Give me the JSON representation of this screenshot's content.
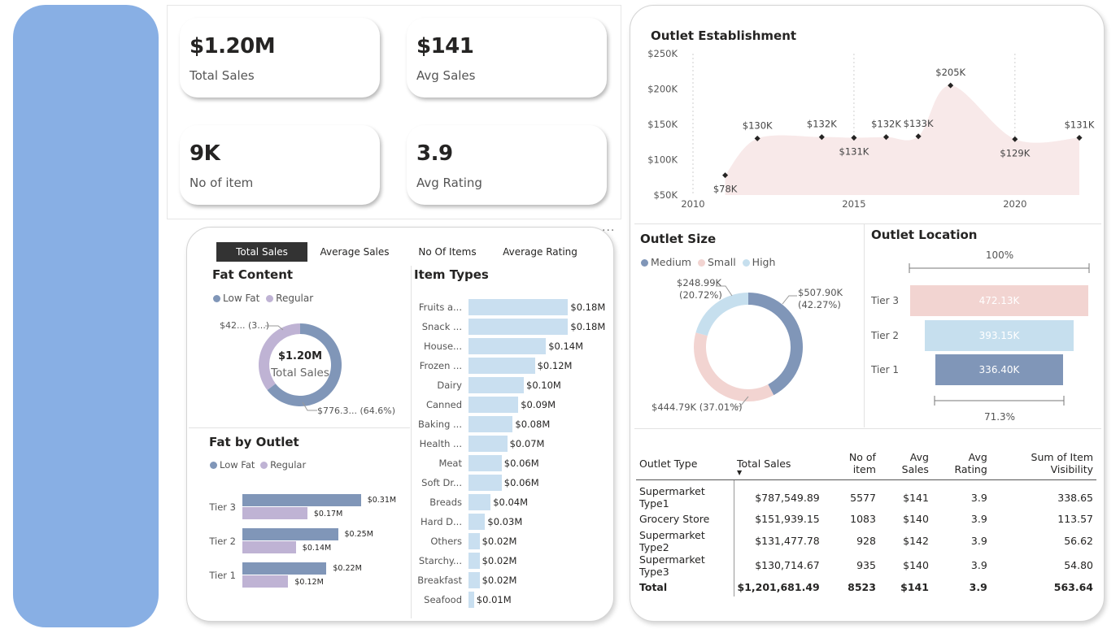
{
  "kpis": {
    "total_sales": {
      "value": "$1.20M",
      "label": "Total Sales"
    },
    "avg_sales": {
      "value": "$141",
      "label": "Avg Sales"
    },
    "no_of_item": {
      "value": "9K",
      "label": "No of item"
    },
    "avg_rating": {
      "value": "3.9",
      "label": "Avg Rating"
    }
  },
  "tabs": [
    {
      "label": "Total Sales",
      "active": true
    },
    {
      "label": "Average Sales",
      "active": false
    },
    {
      "label": "No Of Items",
      "active": false
    },
    {
      "label": "Average Rating",
      "active": false
    }
  ],
  "more_icon": "ellipsis-icon",
  "fat_content": {
    "title": "Fat Content",
    "legend": [
      "Low Fat",
      "Regular"
    ],
    "center_value": "$1.20M",
    "center_label": "Total Sales",
    "label_regular": "$42... (3...)",
    "label_lowfat": "$776.3... (64.6%)"
  },
  "fat_by_outlet": {
    "title": "Fat by Outlet",
    "legend": [
      "Low Fat",
      "Regular"
    ]
  },
  "item_types_title": "Item Types",
  "outlet_establishment_title": "Outlet Establishment",
  "outlet_size": {
    "title": "Outlet Size",
    "legend": [
      "Medium",
      "Small",
      "High"
    ],
    "label_high": "$248.99K",
    "label_high_pct": "(20.72%)",
    "label_medium": "$507.90K",
    "label_medium_pct": "(42.27%)",
    "label_small": "$444.79K (37.01%)"
  },
  "outlet_location": {
    "title": "Outlet Location",
    "top_pct": "100%",
    "bottom_pct": "71.3%"
  },
  "outlet_table": {
    "headers": [
      "Outlet Type",
      "Total Sales",
      "No of item",
      "Avg Sales",
      "Avg Rating",
      "Sum of Item Visibility"
    ],
    "rows": [
      [
        "Supermarket Type1",
        "$787,549.89",
        "5577",
        "$141",
        "3.9",
        "338.65"
      ],
      [
        "Grocery Store",
        "$151,939.15",
        "1083",
        "$140",
        "3.9",
        "113.57"
      ],
      [
        "Supermarket Type2",
        "$131,477.78",
        "928",
        "$142",
        "3.9",
        "56.62"
      ],
      [
        "Supermarket Type3",
        "$130,714.67",
        "935",
        "$140",
        "3.9",
        "54.80"
      ]
    ],
    "total": [
      "Total",
      "$1,201,681.49",
      "8523",
      "$141",
      "3.9",
      "563.64"
    ],
    "sort_icon": "sort-down-icon"
  },
  "colors": {
    "sidebar": "#88afe4",
    "low_fat": "#8096b8",
    "regular": "#bfb3d4",
    "medium": "#8096b8",
    "small": "#f2d4d1",
    "high": "#c6dfee",
    "item_bar": "#c9dff0",
    "area_fill": "#f8e9e9",
    "tier3": "#f2d4d1",
    "tier2": "#c6dfee",
    "tier1": "#8096b8"
  },
  "chart_data": [
    {
      "type": "pie",
      "title": "Fat Content",
      "categories": [
        "Low Fat",
        "Regular"
      ],
      "values": [
        776.32,
        425.36
      ],
      "percent": [
        64.6,
        35.4
      ]
    },
    {
      "type": "bar",
      "title": "Fat by Outlet",
      "categories": [
        "Tier 3",
        "Tier 2",
        "Tier 1"
      ],
      "series": [
        {
          "name": "Low Fat",
          "values": [
            0.31,
            0.25,
            0.22
          ],
          "labels": [
            "$0.31M",
            "$0.25M",
            "$0.22M"
          ]
        },
        {
          "name": "Regular",
          "values": [
            0.17,
            0.14,
            0.12
          ],
          "labels": [
            "$0.17M",
            "$0.14M",
            "$0.12M"
          ]
        }
      ]
    },
    {
      "type": "bar",
      "title": "Item Types",
      "categories": [
        "Fruits a...",
        "Snack ...",
        "House...",
        "Frozen ...",
        "Dairy",
        "Canned",
        "Baking ...",
        "Health ...",
        "Meat",
        "Soft Dr...",
        "Breads",
        "Hard D...",
        "Others",
        "Starchy...",
        "Breakfast",
        "Seafood"
      ],
      "values": [
        0.18,
        0.18,
        0.14,
        0.12,
        0.1,
        0.09,
        0.08,
        0.07,
        0.06,
        0.06,
        0.04,
        0.03,
        0.02,
        0.02,
        0.02,
        0.01
      ],
      "labels": [
        "$0.18M",
        "$0.18M",
        "$0.14M",
        "$0.12M",
        "$0.10M",
        "$0.09M",
        "$0.08M",
        "$0.07M",
        "$0.06M",
        "$0.06M",
        "$0.04M",
        "$0.03M",
        "$0.02M",
        "$0.02M",
        "$0.02M",
        "$0.01M"
      ]
    },
    {
      "type": "area",
      "title": "Outlet Establishment",
      "x": [
        2011,
        2012,
        2014,
        2015,
        2016,
        2017,
        2018,
        2020,
        2022
      ],
      "values": [
        78,
        130,
        132,
        131,
        132,
        133,
        205,
        129,
        131
      ],
      "labels": [
        "$78K",
        "$130K",
        "$132K",
        "$131K",
        "$132K",
        "$133K",
        "$205K",
        "$129K",
        "$131K"
      ],
      "xticks": [
        "2010",
        "2015",
        "2020"
      ],
      "yticks": [
        "$50K",
        "$100K",
        "$150K",
        "$200K",
        "$250K"
      ],
      "xlim": [
        2010,
        2022
      ],
      "ylim": [
        50,
        250
      ]
    },
    {
      "type": "pie",
      "title": "Outlet Size",
      "categories": [
        "Medium",
        "Small",
        "High"
      ],
      "values": [
        507.9,
        444.79,
        248.99
      ],
      "percent": [
        42.27,
        37.01,
        20.72
      ]
    },
    {
      "type": "bar",
      "title": "Outlet Location",
      "categories": [
        "Tier 3",
        "Tier 2",
        "Tier 1"
      ],
      "values": [
        472.13,
        393.15,
        336.4
      ],
      "labels": [
        "472.13K",
        "393.15K",
        "336.40K"
      ]
    }
  ]
}
